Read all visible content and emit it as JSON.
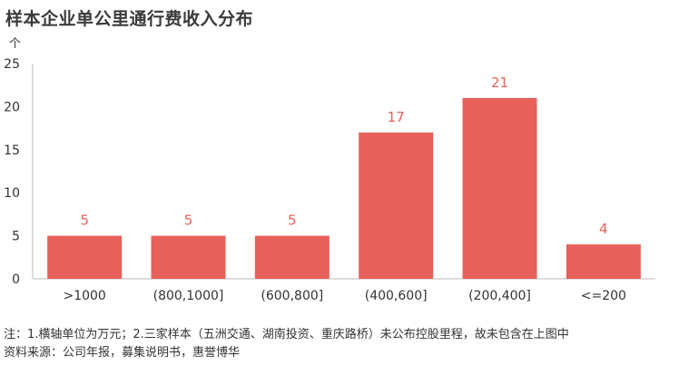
{
  "colors": {
    "bar": "#e8605a",
    "label": "#e8605a",
    "axis": "#bbbbbb"
  },
  "chart_data": {
    "type": "bar",
    "title": "样本企业单公里通行费收入分布",
    "unit": "个",
    "categories": [
      ">1000",
      "(800,1000]",
      "(600,800]",
      "(400,600]",
      "(200,400]",
      "<=200"
    ],
    "values": [
      5,
      5,
      5,
      17,
      21,
      4
    ],
    "ylim": [
      0,
      25
    ],
    "yticks": [
      0,
      5,
      10,
      15,
      20,
      25
    ],
    "grid": false,
    "data_labels": true
  },
  "notes": {
    "line1": "注：1.横轴单位为万元；2.三家样本（五洲交通、湖南投资、重庆路桥）未公布控股里程，故未包含在上图中",
    "line2": "资料来源：公司年报，募集说明书，惠誉博华"
  }
}
